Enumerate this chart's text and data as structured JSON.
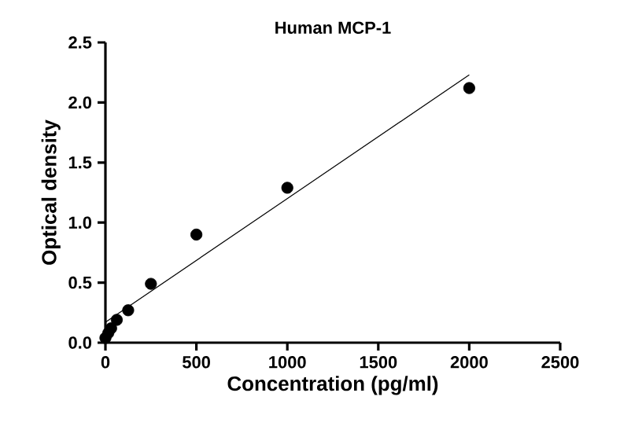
{
  "chart_data": {
    "type": "scatter",
    "title": "Human MCP-1",
    "xlabel": "Concentration (pg/ml)",
    "ylabel": "Optical density",
    "x": [
      0,
      15.6,
      31.25,
      62.5,
      125,
      250,
      500,
      1000,
      2000
    ],
    "series": [
      {
        "color": "#000000",
        "marker": "circle",
        "values": [
          0.04,
          0.08,
          0.12,
          0.19,
          0.27,
          0.49,
          0.9,
          1.29,
          2.12
        ]
      },
      {
        "type": "line",
        "color": "#000000",
        "x": [
          0,
          2000
        ],
        "values": [
          0.17,
          2.23
        ]
      }
    ],
    "xlim": [
      0,
      2500
    ],
    "ylim": [
      0,
      2.5
    ],
    "xticks": [
      0,
      500,
      1000,
      1500,
      2000,
      2500
    ],
    "yticks": [
      {
        "value": 0,
        "label": "0.0"
      },
      0.5,
      {
        "value": 1,
        "label": "1.0"
      },
      1.5,
      {
        "value": 2,
        "label": "2.0"
      },
      2.5
    ],
    "grid": false
  }
}
